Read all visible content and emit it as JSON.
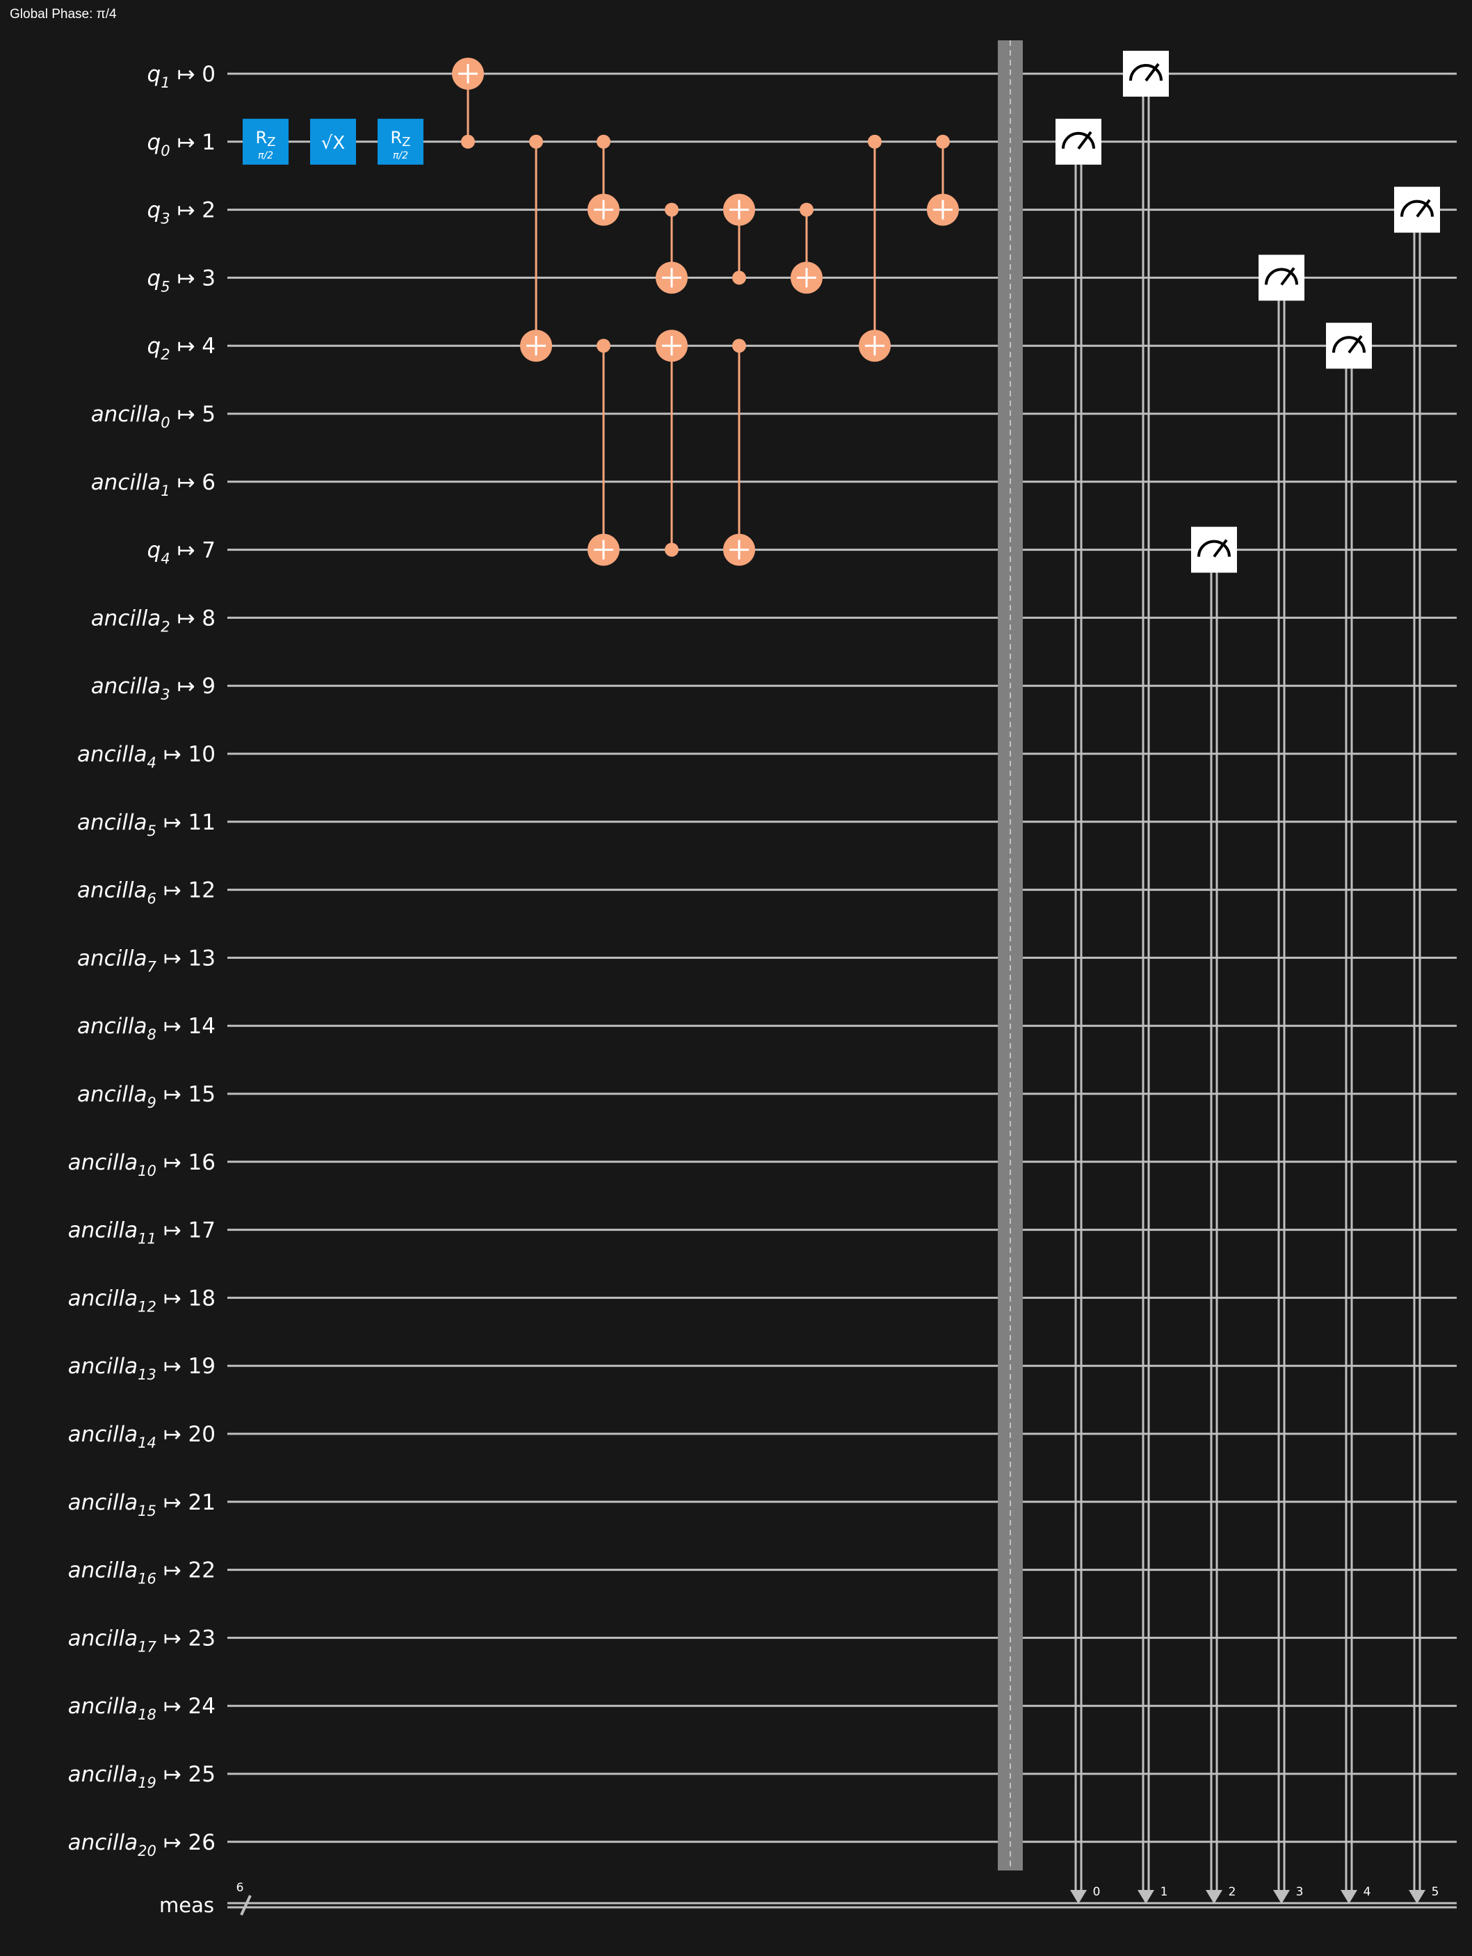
{
  "header": {
    "global_phase": "Global Phase: π/4"
  },
  "colors": {
    "background": "#171717",
    "wire": "#bfbfbf",
    "cx": "#f7a57b",
    "gate": "#0b93e0",
    "barrier": "#808080",
    "measure_box": "#ffffff",
    "text": "#ffffff"
  },
  "qubits": [
    {
      "name": "q",
      "sub": "1",
      "idx": "0"
    },
    {
      "name": "q",
      "sub": "0",
      "idx": "1"
    },
    {
      "name": "q",
      "sub": "3",
      "idx": "2"
    },
    {
      "name": "q",
      "sub": "5",
      "idx": "3"
    },
    {
      "name": "q",
      "sub": "2",
      "idx": "4"
    },
    {
      "name": "ancilla",
      "sub": "0",
      "idx": "5"
    },
    {
      "name": "ancilla",
      "sub": "1",
      "idx": "6"
    },
    {
      "name": "q",
      "sub": "4",
      "idx": "7"
    },
    {
      "name": "ancilla",
      "sub": "2",
      "idx": "8"
    },
    {
      "name": "ancilla",
      "sub": "3",
      "idx": "9"
    },
    {
      "name": "ancilla",
      "sub": "4",
      "idx": "10"
    },
    {
      "name": "ancilla",
      "sub": "5",
      "idx": "11"
    },
    {
      "name": "ancilla",
      "sub": "6",
      "idx": "12"
    },
    {
      "name": "ancilla",
      "sub": "7",
      "idx": "13"
    },
    {
      "name": "ancilla",
      "sub": "8",
      "idx": "14"
    },
    {
      "name": "ancilla",
      "sub": "9",
      "idx": "15"
    },
    {
      "name": "ancilla",
      "sub": "10",
      "idx": "16"
    },
    {
      "name": "ancilla",
      "sub": "11",
      "idx": "17"
    },
    {
      "name": "ancilla",
      "sub": "12",
      "idx": "18"
    },
    {
      "name": "ancilla",
      "sub": "13",
      "idx": "19"
    },
    {
      "name": "ancilla",
      "sub": "14",
      "idx": "20"
    },
    {
      "name": "ancilla",
      "sub": "15",
      "idx": "21"
    },
    {
      "name": "ancilla",
      "sub": "16",
      "idx": "22"
    },
    {
      "name": "ancilla",
      "sub": "17",
      "idx": "23"
    },
    {
      "name": "ancilla",
      "sub": "18",
      "idx": "24"
    },
    {
      "name": "ancilla",
      "sub": "19",
      "idx": "25"
    },
    {
      "name": "ancilla",
      "sub": "20",
      "idx": "26"
    }
  ],
  "classical": {
    "name": "meas",
    "width": "6",
    "bit_labels": [
      "0",
      "1",
      "2",
      "3",
      "4",
      "5"
    ]
  },
  "arrow_symbol": "↦",
  "gates": [
    {
      "kind": "rz",
      "label": "R",
      "label_sub": "Z",
      "param": "π/2",
      "qubit": 1,
      "col": 0
    },
    {
      "kind": "sx",
      "label": "√X",
      "qubit": 1,
      "col": 1
    },
    {
      "kind": "rz",
      "label": "R",
      "label_sub": "Z",
      "param": "π/2",
      "qubit": 1,
      "col": 2
    },
    {
      "kind": "cx",
      "control": 1,
      "target": 0,
      "col": 3
    },
    {
      "kind": "cx",
      "control": 1,
      "target": 4,
      "col": 4
    },
    {
      "kind": "cx",
      "control": 1,
      "target": 2,
      "col": 5
    },
    {
      "kind": "cx",
      "control": 4,
      "target": 7,
      "col": 5
    },
    {
      "kind": "cx",
      "control": 2,
      "target": 3,
      "col": 6
    },
    {
      "kind": "cx",
      "control": 7,
      "target": 4,
      "col": 6
    },
    {
      "kind": "cx",
      "control": 3,
      "target": 2,
      "col": 7
    },
    {
      "kind": "cx",
      "control": 4,
      "target": 7,
      "col": 7
    },
    {
      "kind": "cx",
      "control": 2,
      "target": 3,
      "col": 8
    },
    {
      "kind": "cx",
      "control": 1,
      "target": 4,
      "col": 9
    },
    {
      "kind": "cx",
      "control": 1,
      "target": 2,
      "col": 10
    },
    {
      "kind": "barrier",
      "col": 11
    },
    {
      "kind": "measure",
      "qubit": 1,
      "clbit": 0,
      "col": 12
    },
    {
      "kind": "measure",
      "qubit": 0,
      "clbit": 1,
      "col": 13
    },
    {
      "kind": "measure",
      "qubit": 7,
      "clbit": 2,
      "col": 14
    },
    {
      "kind": "measure",
      "qubit": 3,
      "clbit": 3,
      "col": 15
    },
    {
      "kind": "measure",
      "qubit": 4,
      "clbit": 4,
      "col": 16
    },
    {
      "kind": "measure",
      "qubit": 2,
      "clbit": 5,
      "col": 17
    }
  ]
}
